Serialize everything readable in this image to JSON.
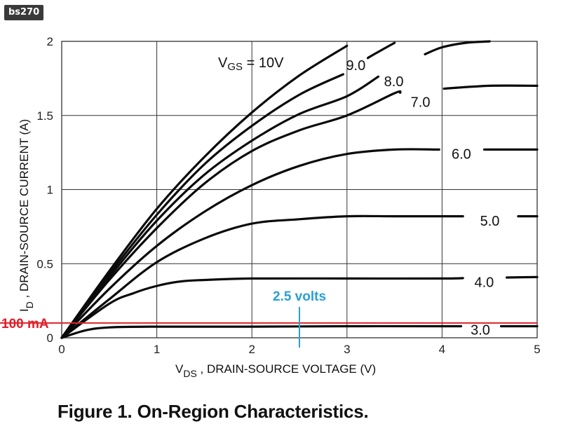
{
  "badge": "bs270",
  "caption": "Figure 1. On-Region Characteristics.",
  "chart_data": {
    "type": "line",
    "xlabel_main": "V",
    "xlabel_sub": "DS",
    "xlabel_rest": " , DRAIN-SOURCE VOLTAGE (V)",
    "ylabel_main": "I",
    "ylabel_sub": "D",
    "ylabel_rest": " , DRAIN-SOURCE CURRENT (A)",
    "xlim": [
      0,
      5
    ],
    "ylim": [
      0,
      2
    ],
    "x_ticks": [
      "0",
      "1",
      "2",
      "3",
      "4",
      "5"
    ],
    "y_ticks": [
      "0",
      "0.5",
      "1",
      "1.5",
      "2"
    ],
    "grid": true,
    "vgs_label_main": "V",
    "vgs_label_sub": "GS",
    "vgs_label_rest": " = 10V",
    "series": [
      {
        "name": "10V",
        "label": "",
        "x": [
          0,
          0.5,
          1,
          1.5,
          2,
          2.5,
          3.0
        ],
        "y": [
          0,
          0.45,
          0.87,
          1.22,
          1.52,
          1.77,
          1.97
        ]
      },
      {
        "name": "9.0",
        "label": "9.0",
        "x": [
          0,
          0.5,
          1,
          1.5,
          2,
          2.5,
          3.0,
          3.25,
          3.5
        ],
        "y": [
          0,
          0.43,
          0.83,
          1.17,
          1.43,
          1.64,
          1.79,
          1.9,
          1.99
        ]
      },
      {
        "name": "8.0",
        "label": "8.0",
        "x": [
          0,
          0.5,
          1,
          1.5,
          2,
          2.5,
          3.0,
          3.5,
          4.0,
          4.25,
          4.5
        ],
        "y": [
          0,
          0.41,
          0.79,
          1.1,
          1.33,
          1.51,
          1.63,
          1.83,
          1.96,
          1.99,
          2.0
        ]
      },
      {
        "name": "7.0",
        "label": "7.0",
        "x": [
          0,
          0.5,
          1,
          1.5,
          2,
          2.5,
          3.0,
          3.5,
          4.0,
          4.5,
          5.0
        ],
        "y": [
          0,
          0.39,
          0.74,
          1.04,
          1.26,
          1.4,
          1.5,
          1.65,
          1.68,
          1.7,
          1.7
        ]
      },
      {
        "name": "6.0",
        "label": "6.0",
        "x": [
          0,
          0.5,
          1,
          1.5,
          2,
          2.5,
          3.0,
          3.5,
          4.0,
          4.5,
          5.0
        ],
        "y": [
          0,
          0.33,
          0.62,
          0.85,
          1.03,
          1.16,
          1.24,
          1.27,
          1.27,
          1.27,
          1.27
        ]
      },
      {
        "name": "5.0",
        "label": "5.0",
        "x": [
          0,
          0.5,
          1,
          1.5,
          2,
          2.5,
          3.0,
          3.5,
          4.0,
          4.5,
          5.0
        ],
        "y": [
          0,
          0.26,
          0.51,
          0.67,
          0.77,
          0.8,
          0.82,
          0.82,
          0.82,
          0.82,
          0.82
        ]
      },
      {
        "name": "4.0",
        "label": "4.0",
        "x": [
          0,
          0.5,
          0.75,
          1,
          1.25,
          1.5,
          2,
          3,
          4,
          5.0
        ],
        "y": [
          0,
          0.23,
          0.3,
          0.35,
          0.38,
          0.39,
          0.4,
          0.4,
          0.4,
          0.41
        ]
      },
      {
        "name": "3.0",
        "label": "3.0",
        "x": [
          0,
          0.25,
          0.5,
          1,
          2,
          3,
          4,
          5.0
        ],
        "y": [
          0,
          0.05,
          0.07,
          0.075,
          0.075,
          0.078,
          0.078,
          0.078
        ]
      }
    ],
    "annotations": {
      "hline": {
        "y": 0.1,
        "label": "100 mA",
        "color": "#e0202a"
      },
      "vline": {
        "x": 2.5,
        "label": "2.5 volts",
        "color": "#2a9fd6"
      }
    }
  }
}
